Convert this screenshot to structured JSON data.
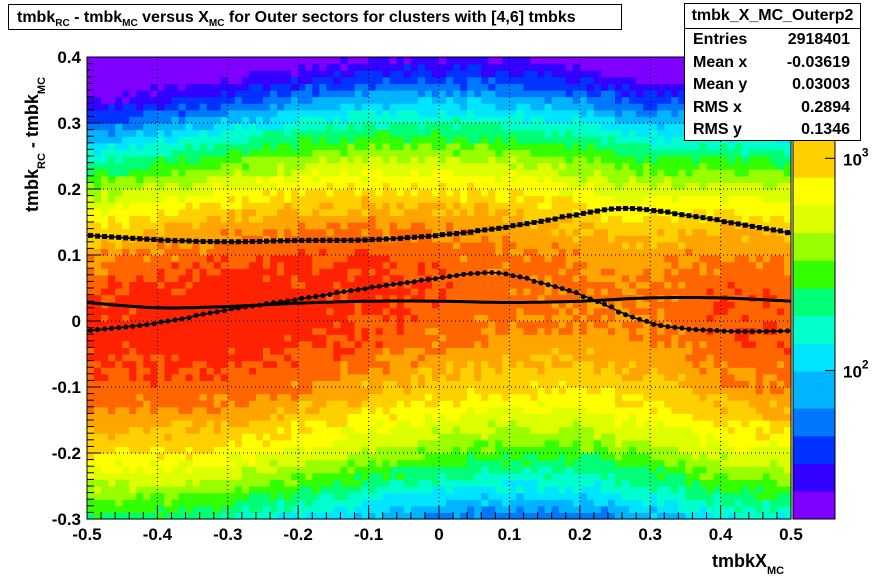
{
  "title": {
    "parts": [
      "tmbk",
      "RC",
      " - tmbk",
      "MC",
      " versus X",
      "MC",
      " for Outer sectors for clusters with [4,6] tmbks"
    ]
  },
  "stats": {
    "name": "tmbk_X_MC_Outerp2",
    "rows": [
      {
        "label": "Entries",
        "value": "2918401"
      },
      {
        "label": "Mean x",
        "value": "-0.03619"
      },
      {
        "label": "Mean y",
        "value": "0.03003"
      },
      {
        "label": "RMS x",
        "value": "0.2894"
      },
      {
        "label": "RMS y",
        "value": "0.1346"
      }
    ]
  },
  "chart_data": {
    "type": "heatmap",
    "xlabel": "tmbkX",
    "xlabel_sub": "MC",
    "ylabel": "tmbk",
    "ylabel_sub1": "RC",
    "ylabel_mid": " - tmbk",
    "ylabel_sub2": "MC",
    "xlim": [
      -0.5,
      0.5
    ],
    "ylim": [
      -0.3,
      0.4
    ],
    "x_ticks": [
      -0.5,
      -0.4,
      -0.3,
      -0.2,
      -0.1,
      0,
      0.1,
      0.2,
      0.3,
      0.4,
      0.5
    ],
    "x_tick_labels": [
      "-0.5",
      "-0.4",
      "-0.3",
      "-0.2",
      "-0.1",
      "0",
      "0.1",
      "0.2",
      "0.3",
      "0.4",
      "0.5"
    ],
    "y_ticks": [
      -0.3,
      -0.2,
      -0.1,
      0,
      0.1,
      0.2,
      0.3,
      0.4
    ],
    "y_tick_labels": [
      "-0.3",
      "-0.2",
      "-0.1",
      "0",
      "0.1",
      "0.2",
      "0.3",
      "0.4"
    ],
    "grid": true,
    "log_z": true,
    "z_range": [
      20,
      3000
    ],
    "z_labels": [
      {
        "base": "10",
        "exp": "2",
        "value": 100
      },
      {
        "base": "10",
        "exp": "3",
        "value": 1000
      }
    ],
    "palette": [
      "#7f00ff",
      "#3300ff",
      "#0033ff",
      "#0077ff",
      "#00b4ff",
      "#00e5ff",
      "#00ffcc",
      "#00ff77",
      "#33ff00",
      "#99ff00",
      "#ddff00",
      "#ffff00",
      "#ffd000",
      "#ffa500",
      "#ff6600",
      "#ff2200"
    ],
    "overlay_series": [
      {
        "style": "markers-upper",
        "x": [
          -0.5,
          -0.4,
          -0.3,
          -0.2,
          -0.1,
          0.0,
          0.1,
          0.2,
          0.25,
          0.3,
          0.4,
          0.5
        ],
        "y": [
          0.13,
          0.123,
          0.12,
          0.122,
          0.123,
          0.13,
          0.143,
          0.162,
          0.17,
          0.168,
          0.152,
          0.133
        ]
      },
      {
        "style": "markers-lower",
        "x": [
          -0.5,
          -0.4,
          -0.3,
          -0.2,
          -0.1,
          0.0,
          0.05,
          0.1,
          0.2,
          0.3,
          0.4,
          0.5
        ],
        "y": [
          -0.015,
          -0.003,
          0.017,
          0.033,
          0.05,
          0.065,
          0.072,
          0.07,
          0.04,
          -0.003,
          -0.015,
          -0.015
        ]
      },
      {
        "style": "line-mean",
        "x": [
          -0.5,
          -0.4,
          -0.3,
          -0.2,
          -0.1,
          0.0,
          0.1,
          0.2,
          0.3,
          0.4,
          0.5
        ],
        "y": [
          0.028,
          0.02,
          0.022,
          0.027,
          0.03,
          0.03,
          0.028,
          0.03,
          0.035,
          0.035,
          0.03
        ]
      }
    ]
  }
}
